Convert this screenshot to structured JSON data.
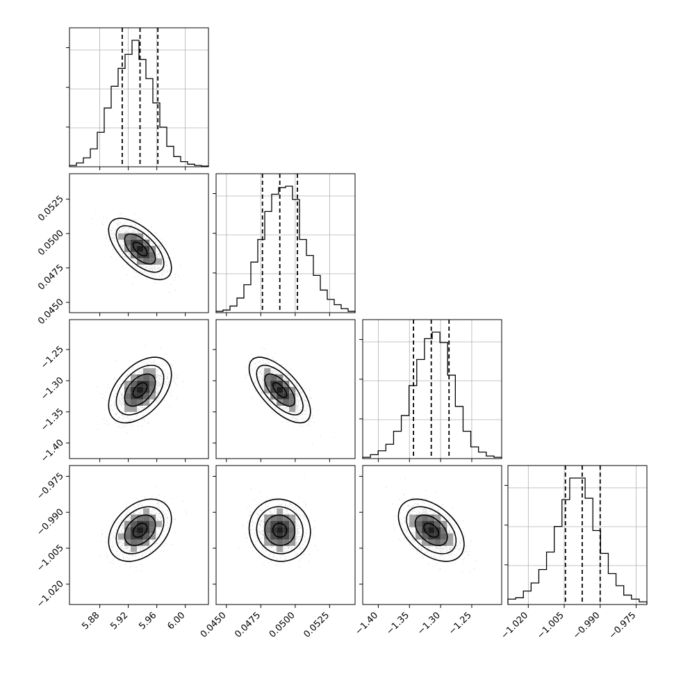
{
  "chart_data": {
    "type": "corner",
    "grid": true,
    "quantile_lines": [
      0.16,
      0.5,
      0.84
    ],
    "colors": {
      "hist": "#000000",
      "contour": "#000000",
      "points": "#bdbdbd",
      "density": "#000000"
    },
    "parameters": [
      {
        "id": "p1",
        "range": [
          5.8375,
          6.0325
        ],
        "ticks": [
          5.88,
          5.92,
          5.96,
          6.0
        ],
        "tick_labels": [
          "5.88",
          "5.92",
          "5.96",
          "6.00"
        ],
        "quantiles": [
          5.9115,
          5.9365,
          5.9615
        ],
        "hist": [
          0.01,
          0.03,
          0.07,
          0.14,
          0.27,
          0.46,
          0.63,
          0.77,
          0.88,
          0.99,
          0.84,
          0.69,
          0.5,
          0.31,
          0.16,
          0.08,
          0.04,
          0.02,
          0.01,
          0.005
        ]
      },
      {
        "id": "p2",
        "range": [
          0.04425,
          0.05435
        ],
        "ticks": [
          0.045,
          0.0475,
          0.05,
          0.0525
        ],
        "tick_labels": [
          "0.0450",
          "0.0475",
          "0.0500",
          "0.0525"
        ],
        "quantiles": [
          0.04762,
          0.04888,
          0.05016
        ],
        "hist": [
          0.01,
          0.02,
          0.05,
          0.11,
          0.21,
          0.38,
          0.55,
          0.76,
          0.89,
          0.94,
          0.95,
          0.85,
          0.55,
          0.43,
          0.28,
          0.17,
          0.1,
          0.06,
          0.03,
          0.01
        ]
      },
      {
        "id": "p3",
        "range": [
          -1.425,
          -1.202
        ],
        "ticks": [
          -1.4,
          -1.35,
          -1.3,
          -1.25
        ],
        "tick_labels": [
          "−1.40",
          "−1.35",
          "−1.30",
          "−1.25"
        ],
        "quantiles": [
          -1.3435,
          -1.315,
          -1.2865
        ],
        "hist": [
          0.01,
          0.03,
          0.06,
          0.11,
          0.21,
          0.33,
          0.56,
          0.76,
          0.92,
          0.97,
          0.89,
          0.64,
          0.4,
          0.21,
          0.09,
          0.05,
          0.02,
          0.01
        ]
      },
      {
        "id": "p4",
        "range": [
          -1.0285,
          -0.9705
        ],
        "ticks": [
          -1.02,
          -1.005,
          -0.99,
          -0.975
        ],
        "tick_labels": [
          "−1.020",
          "−1.005",
          "−0.990",
          "−0.975"
        ],
        "quantiles": [
          -1.0045,
          -0.9975,
          -0.99
        ],
        "hist": [
          0.04,
          0.05,
          0.1,
          0.16,
          0.26,
          0.39,
          0.58,
          0.78,
          0.94,
          0.94,
          0.79,
          0.55,
          0.38,
          0.23,
          0.14,
          0.07,
          0.04,
          0.02
        ]
      }
    ],
    "pairs": [
      {
        "x": "p1",
        "y": "p2",
        "mean": [
          5.9365,
          0.04888
        ],
        "sd": [
          0.018,
          0.00091
        ],
        "corr": -0.62
      },
      {
        "x": "p1",
        "y": "p3",
        "mean": [
          5.9365,
          -1.315
        ],
        "sd": [
          0.018,
          0.0215
        ],
        "corr": 0.47
      },
      {
        "x": "p2",
        "y": "p3",
        "mean": [
          0.04888,
          -1.315
        ],
        "sd": [
          0.00091,
          0.0215
        ],
        "corr": -0.66
      },
      {
        "x": "p1",
        "y": "p4",
        "mean": [
          5.9365,
          -0.9975
        ],
        "sd": [
          0.018,
          0.0053
        ],
        "corr": 0.36
      },
      {
        "x": "p2",
        "y": "p4",
        "mean": [
          0.04888,
          -0.9975
        ],
        "sd": [
          0.00091,
          0.0053
        ],
        "corr": -0.05
      },
      {
        "x": "p3",
        "y": "p4",
        "mean": [
          -1.315,
          -0.9975
        ],
        "sd": [
          0.0215,
          0.0053
        ],
        "corr": -0.45
      }
    ]
  }
}
